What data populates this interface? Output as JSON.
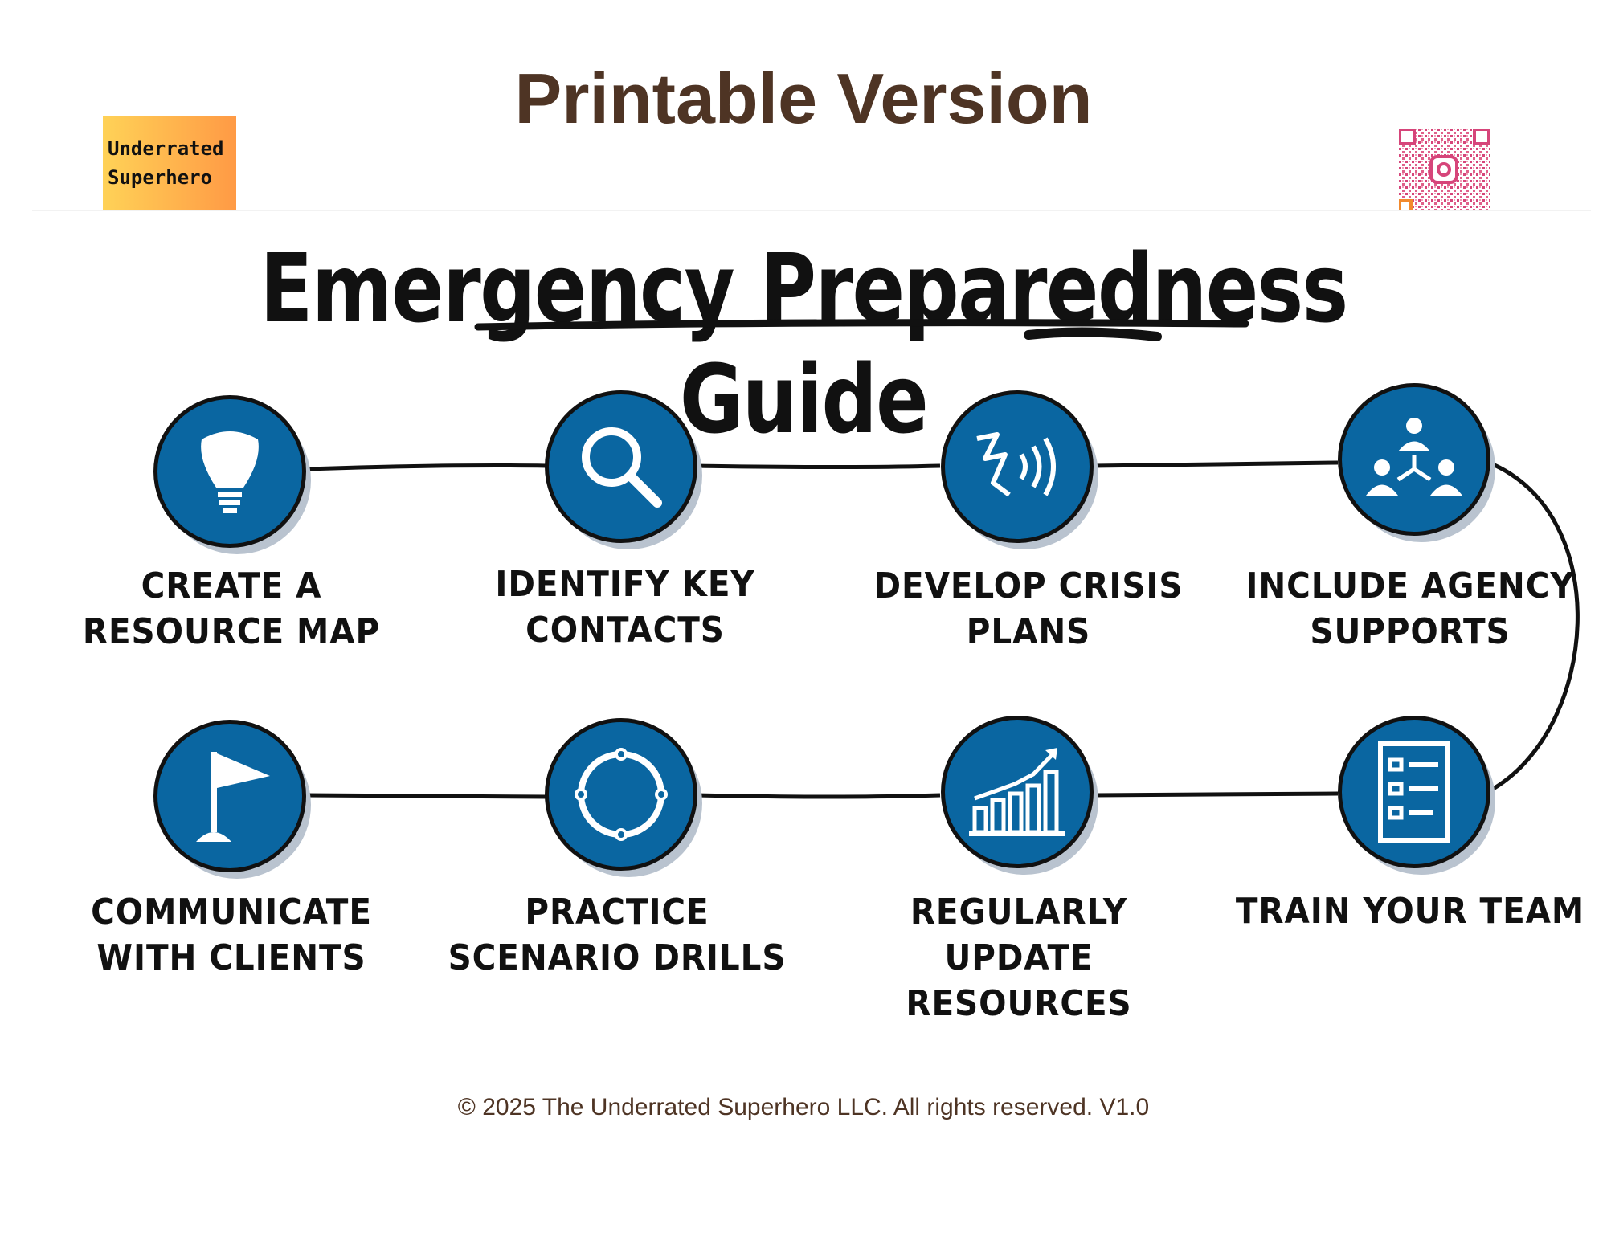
{
  "header": {
    "printable_label": "Printable Version",
    "logo": {
      "line1": "Underrated",
      "line2": "Superhero"
    },
    "qr_code": {
      "icon": "instagram-qr-icon",
      "colors": [
        "#d6457a",
        "#f28a2e"
      ]
    }
  },
  "title": "Emergency Preparedness Guide",
  "colors": {
    "circle": "#0a66a1",
    "outline": "#111111",
    "shadow": "#b9c3cf",
    "brown": "#4e3424"
  },
  "steps": [
    {
      "label": "Create a resource map",
      "icon": "lightbulb-icon"
    },
    {
      "label": "Identify key contacts",
      "icon": "magnifier-icon"
    },
    {
      "label": "Develop crisis plans",
      "icon": "alert-signal-icon"
    },
    {
      "label": "Include agency supports",
      "icon": "network-people-icon"
    },
    {
      "label": "Train your team",
      "icon": "checklist-icon"
    },
    {
      "label": "Regularly update resources",
      "icon": "bar-chart-growth-icon"
    },
    {
      "label": "Practice scenario drills",
      "icon": "cycle-icon"
    },
    {
      "label": "Communicate with clients",
      "icon": "flag-icon"
    }
  ],
  "footer": "© 2025 The Underrated Superhero LLC. All rights reserved. V1.0"
}
